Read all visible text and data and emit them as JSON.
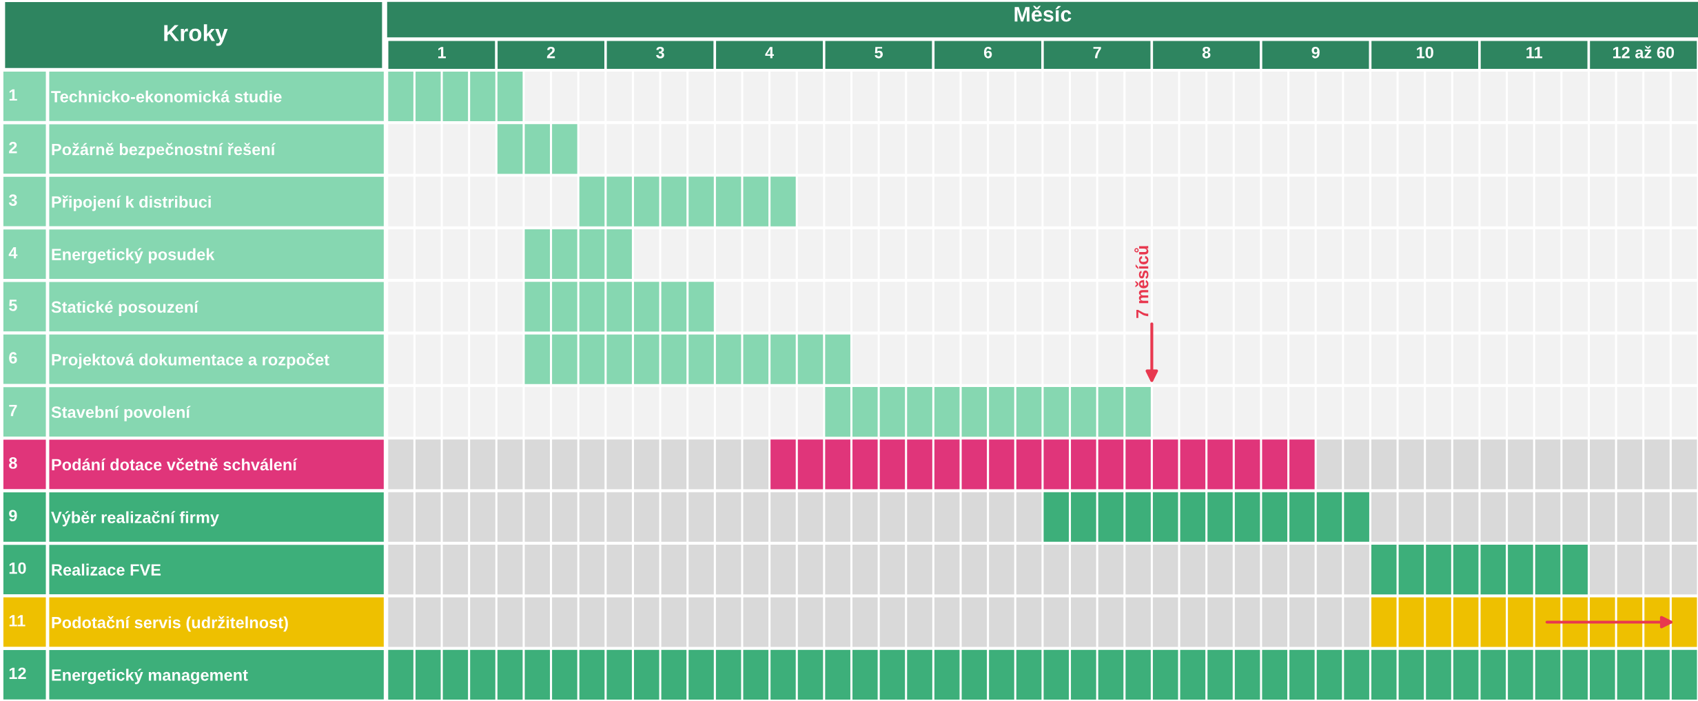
{
  "chart_data": {
    "type": "bar",
    "orientation": "horizontal",
    "ylabel": "Kroky",
    "xlabel": "Měsíc",
    "categories": [
      "Technicko-ekonomická studie",
      "Požárně bezpečnostní řešení",
      "Připojení k distribuci",
      "Energetický posudek",
      "Statické posouzení",
      "Projektová dokumentace a rozpočet",
      "Stavební povolení",
      "Podání dotace včetně schválení",
      "Výběr realizační firmy",
      "Realizace FVE",
      "Podotační servis (udržitelnost)",
      "Energetický management"
    ],
    "base": [
      0.5,
      1.5,
      2.25,
      1.75,
      1.75,
      1.75,
      4.5,
      4,
      6.5,
      9.5,
      9.5,
      0.5
    ],
    "values": [
      1.25,
      0.75,
      2,
      1,
      1.75,
      3,
      3,
      5,
      3,
      2,
      3,
      12
    ],
    "colors": [
      "#86d7b1",
      "#86d7b1",
      "#86d7b1",
      "#86d7b1",
      "#86d7b1",
      "#86d7b1",
      "#86d7b1",
      "#e0357a",
      "#3daf7a",
      "#3daf7a",
      "#eec000",
      "#3daf7a"
    ],
    "xlim": [
      0.5,
      12.5
    ],
    "xticks": [
      1,
      2,
      3,
      4,
      5,
      6,
      7,
      8,
      9,
      10,
      11,
      {
        "value": 12,
        "label": "12 až 60"
      }
    ],
    "grid": "x",
    "annotations": [
      "1",
      "2",
      "3",
      "4",
      "5",
      "6",
      "7",
      "8",
      "9",
      "10",
      "11",
      "12",
      "7 měsíců"
    ]
  }
}
